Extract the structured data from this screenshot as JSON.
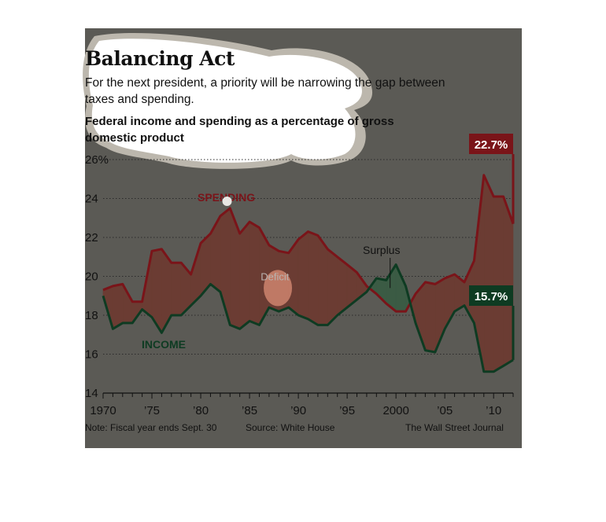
{
  "chart_data": {
    "type": "area",
    "title": "Balancing Act",
    "subtitle": "For the next president, a priority will be narrowing the gap between taxes and spending.",
    "chart_title": "Federal income and spending as a percentage of gross domestic product",
    "x_ticks": [
      1970,
      1975,
      1980,
      1985,
      1990,
      1995,
      2000,
      2005,
      2010
    ],
    "x_tick_labels": [
      "1970",
      "’75",
      "’80",
      "’85",
      "’90",
      "’95",
      "2000",
      "’05",
      "’10"
    ],
    "y_ticks": [
      14,
      16,
      18,
      20,
      22,
      24,
      26
    ],
    "y_tick_labels": [
      "14",
      "16",
      "18",
      "20",
      "22",
      "24",
      "26%"
    ],
    "ylim": [
      14,
      26
    ],
    "xlim": [
      1970,
      2012
    ],
    "grid": true,
    "colors": {
      "background": "#5b5a55",
      "spending": "#7a1419",
      "income": "#0e3b22",
      "deficit_fill": "#6b3c33",
      "surplus_fill": "#3b5b44",
      "grid": "#2b2b2b",
      "blob": "#ffffff",
      "blob_outline": "#bcb7ad"
    },
    "series": [
      {
        "name": "SPENDING",
        "x": [
          1970,
          1971,
          1972,
          1973,
          1974,
          1975,
          1976,
          1977,
          1978,
          1979,
          1980,
          1981,
          1982,
          1983,
          1984,
          1985,
          1986,
          1987,
          1988,
          1989,
          1990,
          1991,
          1992,
          1993,
          1994,
          1995,
          1996,
          1997,
          1998,
          1999,
          2000,
          2001,
          2002,
          2003,
          2004,
          2005,
          2006,
          2007,
          2008,
          2009,
          2010,
          2011,
          2012
        ],
        "values": [
          19.3,
          19.5,
          19.6,
          18.7,
          18.7,
          21.3,
          21.4,
          20.7,
          20.7,
          20.1,
          21.7,
          22.2,
          23.1,
          23.5,
          22.2,
          22.8,
          22.5,
          21.6,
          21.3,
          21.2,
          21.9,
          22.3,
          22.1,
          21.4,
          21.0,
          20.6,
          20.2,
          19.5,
          19.1,
          18.6,
          18.2,
          18.2,
          19.1,
          19.7,
          19.6,
          19.9,
          20.1,
          19.7,
          20.8,
          25.2,
          24.1,
          24.1,
          22.7
        ]
      },
      {
        "name": "INCOME",
        "x": [
          1970,
          1971,
          1972,
          1973,
          1974,
          1975,
          1976,
          1977,
          1978,
          1979,
          1980,
          1981,
          1982,
          1983,
          1984,
          1985,
          1986,
          1987,
          1988,
          1989,
          1990,
          1991,
          1992,
          1993,
          1994,
          1995,
          1996,
          1997,
          1998,
          1999,
          2000,
          2001,
          2002,
          2003,
          2004,
          2005,
          2006,
          2007,
          2008,
          2009,
          2010,
          2011,
          2012
        ],
        "values": [
          19.0,
          17.3,
          17.6,
          17.6,
          18.3,
          17.9,
          17.1,
          18.0,
          18.0,
          18.5,
          19.0,
          19.6,
          19.2,
          17.5,
          17.3,
          17.7,
          17.5,
          18.4,
          18.2,
          18.4,
          18.0,
          17.8,
          17.5,
          17.5,
          18.0,
          18.4,
          18.8,
          19.2,
          19.9,
          19.8,
          20.6,
          19.5,
          17.6,
          16.2,
          16.1,
          17.3,
          18.2,
          18.5,
          17.6,
          15.1,
          15.1,
          15.4,
          15.7
        ]
      }
    ],
    "annotations": {
      "spending_label": "SPENDING",
      "income_label": "INCOME",
      "deficit_label": "Deficit",
      "surplus_label": "Surplus",
      "spending_end": "22.7%",
      "income_end": "15.7%"
    }
  },
  "footer": {
    "note": "Note: Fiscal year ends Sept. 30",
    "source": "Source: White House",
    "credit": "The Wall Street Journal"
  }
}
